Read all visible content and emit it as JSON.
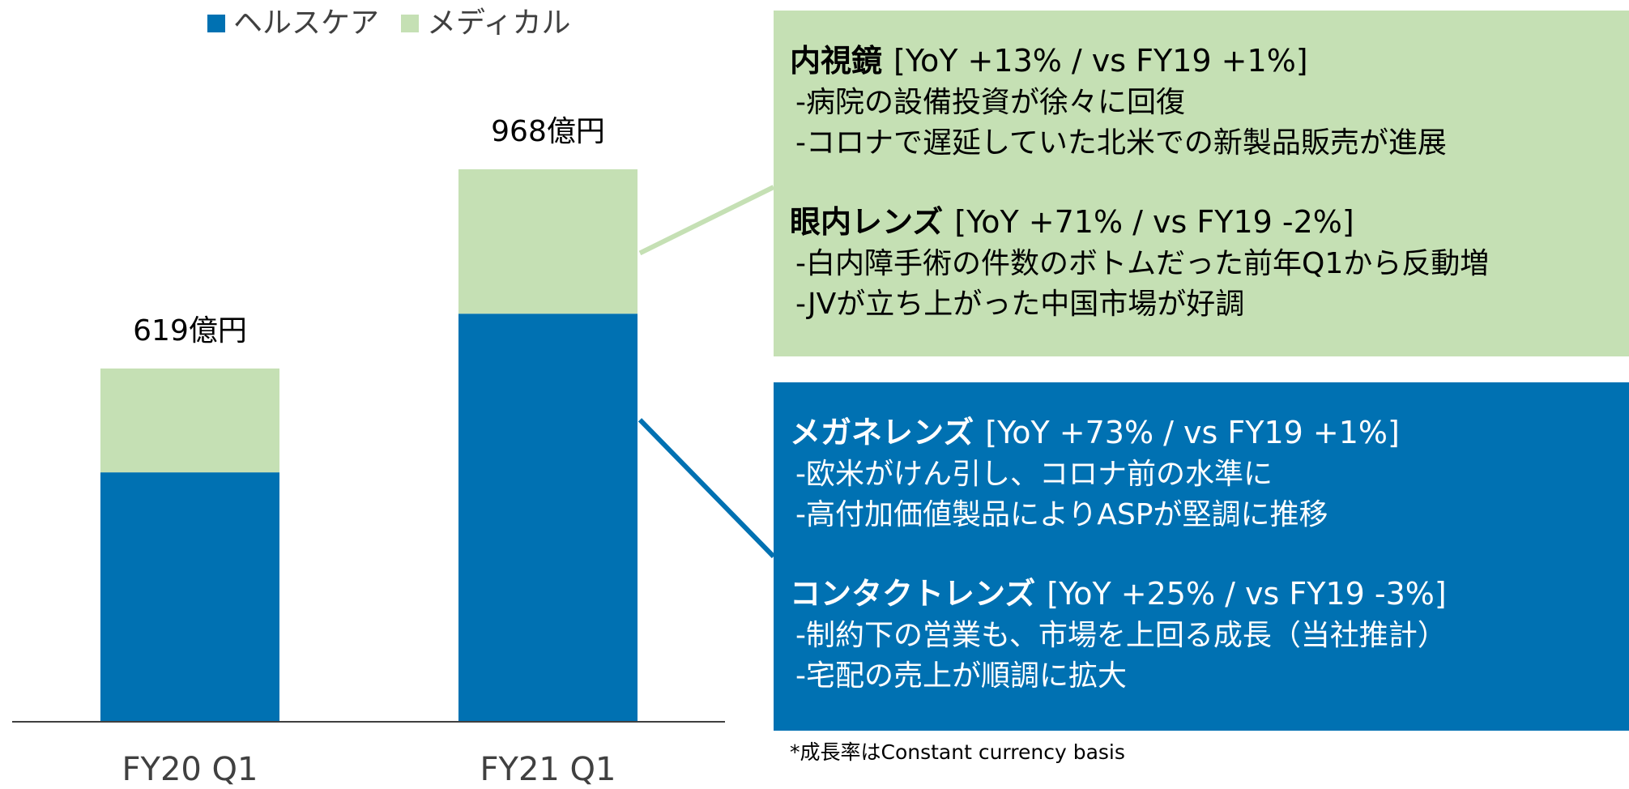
{
  "chart_data": {
    "type": "bar",
    "stacked": true,
    "categories": [
      "FY20 Q1",
      "FY21 Q1"
    ],
    "series": [
      {
        "name": "ヘルスケア",
        "color": "#0071b2",
        "values": [
          437,
          715
        ]
      },
      {
        "name": "メディカル",
        "color": "#c5e0b4",
        "values": [
          182,
          253
        ]
      }
    ],
    "totals": [
      619,
      968
    ],
    "total_labels": [
      "619億円",
      "968億円"
    ],
    "panels": [
      {
        "series": 1,
        "color": "#c5e0b4",
        "text_color": "#000000",
        "items": [
          {
            "heading": "内視鏡",
            "detail": "[YoY +13% / vs FY19 +1%]",
            "lines": [
              "-病院の設備投資が徐々に回復",
              "-コロナで遅延していた北米での新製品販売が進展"
            ]
          },
          {
            "heading": "眼内レンズ",
            "detail": "[YoY +71% / vs FY19 -2%]",
            "lines": [
              "-白内障手術の件数のボトムだった前年Q1から反動増",
              "-JVが立ち上がった中国市場が好調"
            ]
          }
        ]
      },
      {
        "series": 0,
        "color": "#0071b2",
        "text_color": "#ffffff",
        "items": [
          {
            "heading": "メガネレンズ",
            "detail": "[YoY +73% / vs FY19 +1%]",
            "lines": [
              "-欧米がけん引し、コロナ前の水準に",
              "-高付加価値製品によりASPが堅調に推移"
            ]
          },
          {
            "heading": "コンタクトレンズ",
            "detail": "[YoY +25% / vs FY19 -3%]",
            "lines": [
              "-制約下の営業も、市場を上回る成長（当社推計）",
              "-宅配の売上が順調に拡大"
            ]
          }
        ]
      }
    ],
    "footnote": "*成長率はConstant currency basis"
  }
}
